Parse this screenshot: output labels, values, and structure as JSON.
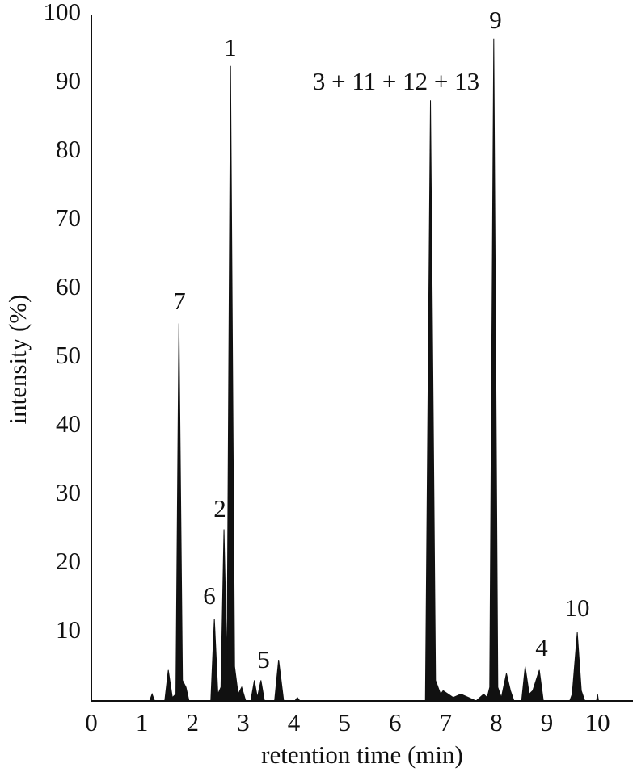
{
  "chart_data": {
    "type": "area",
    "color": "#111111",
    "x_label": "retention time (min)",
    "y_label": "intensity (%)",
    "xlim": [
      0,
      10.7
    ],
    "ylim": [
      0,
      100
    ],
    "xticks": [
      0,
      1,
      2,
      3,
      4,
      5,
      6,
      7,
      8,
      9,
      10
    ],
    "yticks": [
      10,
      20,
      30,
      40,
      50,
      60,
      70,
      80,
      90,
      100
    ],
    "x": [
      0,
      1.15,
      1.2,
      1.25,
      1.45,
      1.52,
      1.6,
      1.67,
      1.73,
      1.8,
      1.87,
      1.93,
      2.36,
      2.43,
      2.5,
      2.56,
      2.62,
      2.68,
      2.75,
      2.83,
      2.9,
      2.97,
      3.05,
      3.15,
      3.22,
      3.28,
      3.35,
      3.42,
      3.62,
      3.7,
      3.8,
      4.02,
      4.07,
      4.12,
      6.6,
      6.7,
      6.8,
      6.9,
      6.95,
      7.05,
      7.15,
      7.3,
      7.45,
      7.6,
      7.75,
      7.82,
      7.87,
      7.95,
      8.03,
      8.1,
      8.2,
      8.28,
      8.35,
      8.5,
      8.57,
      8.65,
      8.72,
      8.85,
      8.93,
      9.45,
      9.5,
      9.6,
      9.68,
      9.75,
      9.98,
      10.0,
      10.02,
      10.7
    ],
    "values": [
      0,
      0,
      1,
      0,
      0,
      4.5,
      0.5,
      1,
      55,
      3,
      2,
      0,
      0,
      12,
      1,
      2,
      25,
      5,
      92.5,
      5,
      1,
      2,
      0,
      0,
      3,
      0.5,
      3,
      0,
      0,
      6,
      0,
      0,
      0.5,
      0,
      0,
      87.5,
      3,
      1,
      1.5,
      1,
      0.5,
      1,
      0.5,
      0,
      1,
      0.5,
      2,
      96.5,
      2,
      0.5,
      4,
      1.5,
      0,
      0,
      5,
      1,
      1.5,
      4.5,
      0,
      0,
      1,
      10,
      1.5,
      0,
      0,
      1,
      0,
      0
    ],
    "annotations": [
      "1",
      "3 + 11 + 12 + 13",
      "9",
      "7",
      "2",
      "6",
      "5",
      "4",
      "10"
    ]
  }
}
